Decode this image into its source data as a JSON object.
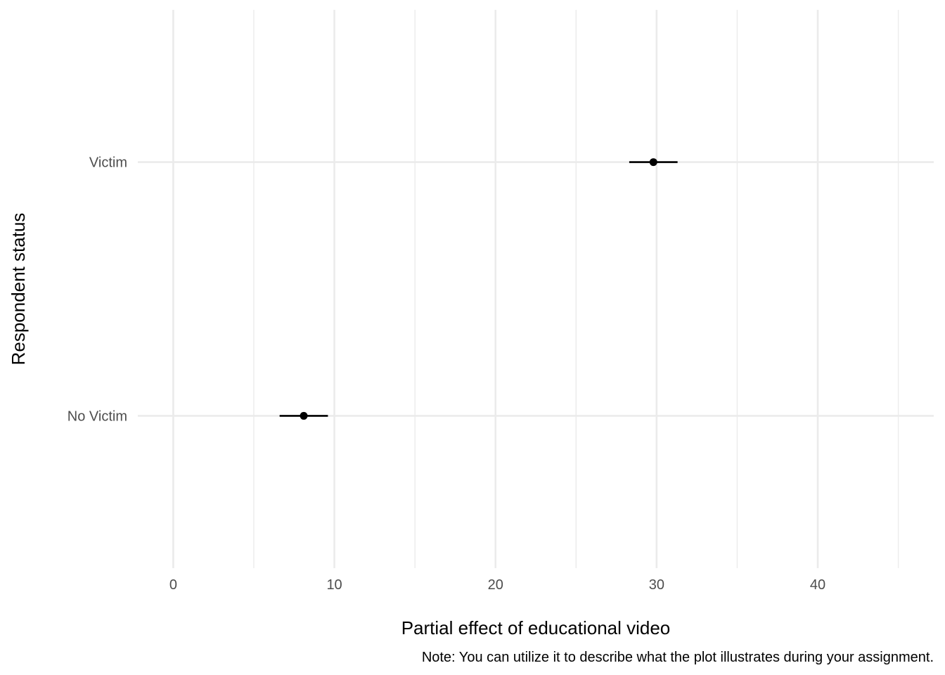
{
  "chart_data": {
    "type": "scatter",
    "subtype": "point-range",
    "orientation": "horizontal",
    "categories": [
      "No Victim",
      "Victim"
    ],
    "estimates": [
      {
        "category": "No Victim",
        "value": 8.1,
        "low": 6.6,
        "high": 9.6
      },
      {
        "category": "Victim",
        "value": 29.8,
        "low": 28.3,
        "high": 31.3
      }
    ],
    "xlabel": "Partial effect of educational video",
    "ylabel": "Respondent status",
    "xlim": [
      -2.2,
      47.2
    ],
    "x_ticks": [
      0,
      10,
      20,
      30,
      40
    ],
    "x_tick_labels": [
      "0",
      "10",
      "20",
      "30",
      "40"
    ],
    "x_minor_ticks": [
      5,
      15,
      25,
      35,
      45
    ],
    "grid": true,
    "legend": "none",
    "caption": "Note: You can utilize it to describe what the plot illustrates during your assignment.",
    "colors": {
      "point": "#000000",
      "grid": "#ebebeb",
      "tick_text": "#4d4d4d"
    }
  }
}
